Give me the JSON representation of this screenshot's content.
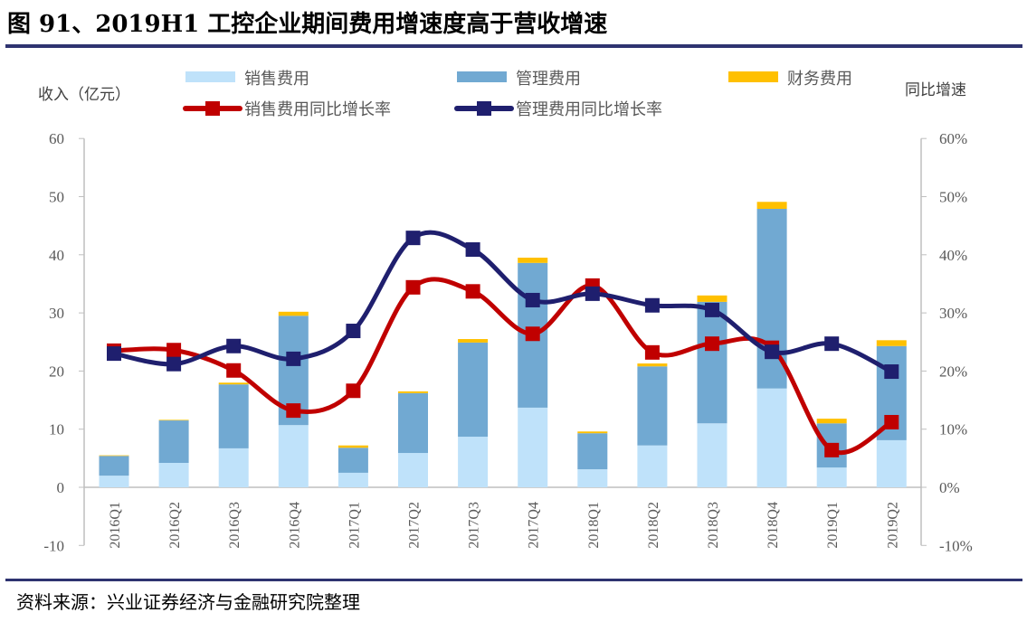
{
  "title": "图 91、2019H1 工控企业期间费用增速度高于营收增速",
  "source": "资料来源：兴业证券经济与金融研究院整理",
  "chart_data": {
    "type": "bar",
    "stacked": true,
    "title": "图 91、2019H1 工控企业期间费用增速度高于营收增速",
    "ylabel": "收入（亿元）",
    "y2label": "同比增速",
    "ylim": [
      -10,
      60
    ],
    "y2lim": [
      -10,
      60
    ],
    "yticks": [
      "60",
      "50",
      "40",
      "30",
      "20",
      "10",
      "0",
      "-10"
    ],
    "y2ticks": [
      "60%",
      "50%",
      "40%",
      "30%",
      "20%",
      "10%",
      "0%",
      "-10%"
    ],
    "legend_position": "top",
    "categories": [
      "2016Q1",
      "2016Q2",
      "2016Q3",
      "2016Q4",
      "2017Q1",
      "2017Q2",
      "2017Q3",
      "2017Q4",
      "2018Q1",
      "2018Q2",
      "2018Q3",
      "2018Q4",
      "2019Q1",
      "2019Q2"
    ],
    "series": [
      {
        "name": "销售费用",
        "kind": "bar",
        "color": "#bfe2fa",
        "values": [
          2.0,
          4.2,
          6.7,
          10.7,
          2.5,
          5.9,
          8.7,
          13.7,
          3.1,
          7.2,
          11.0,
          17.0,
          3.4,
          8.1
        ]
      },
      {
        "name": "管理费用",
        "kind": "bar",
        "color": "#71a9d2",
        "values": [
          3.4,
          7.3,
          11.0,
          18.8,
          4.3,
          10.3,
          16.2,
          24.9,
          6.2,
          13.6,
          20.9,
          30.9,
          7.6,
          16.2
        ]
      },
      {
        "name": "财务费用",
        "kind": "bar",
        "color": "#ffc000",
        "values": [
          0.1,
          0.1,
          0.3,
          0.7,
          0.4,
          0.3,
          0.6,
          0.9,
          0.3,
          0.5,
          1.1,
          1.2,
          0.8,
          1.0
        ]
      },
      {
        "name": "销售费用同比增长率",
        "kind": "line",
        "axis": "right",
        "color": "#c00000",
        "values": [
          23.5,
          23.6,
          20.1,
          13.2,
          16.6,
          34.4,
          33.7,
          26.4,
          34.7,
          23.2,
          24.7,
          24.0,
          6.4,
          11.2
        ]
      },
      {
        "name": "管理费用同比增长率",
        "kind": "line",
        "axis": "right",
        "color": "#1f1f6e",
        "values": [
          23.0,
          21.2,
          24.3,
          22.1,
          26.9,
          42.9,
          40.9,
          32.2,
          33.3,
          31.3,
          30.5,
          23.3,
          24.7,
          19.9
        ]
      }
    ]
  }
}
